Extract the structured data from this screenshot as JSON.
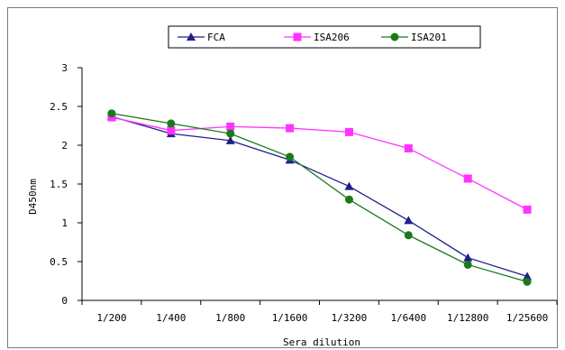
{
  "chart_data": {
    "type": "line",
    "categories": [
      "1/200",
      "1/400",
      "1/800",
      "1/1600",
      "1/3200",
      "1/6400",
      "1/12800",
      "1/25600"
    ],
    "series": [
      {
        "name": "FCA",
        "color": "#1f1f8c",
        "marker": "triangle",
        "values": [
          2.37,
          2.15,
          2.06,
          1.81,
          1.47,
          1.03,
          0.55,
          0.31
        ]
      },
      {
        "name": "ISA206",
        "color": "#ff33ff",
        "marker": "square",
        "values": [
          2.36,
          2.19,
          2.24,
          2.22,
          2.17,
          1.96,
          1.57,
          1.17
        ]
      },
      {
        "name": "ISA201",
        "color": "#1a7a1a",
        "marker": "circle",
        "values": [
          2.41,
          2.28,
          2.15,
          1.85,
          1.3,
          0.84,
          0.46,
          0.24
        ]
      }
    ],
    "ylim": [
      0,
      3
    ],
    "yticks": [
      "0",
      "0.5",
      "1",
      "1.5",
      "2",
      "2.5",
      "3"
    ],
    "xlabel": "Sera dilution",
    "ylabel": "D450nm",
    "legend": "top",
    "grid": false
  }
}
